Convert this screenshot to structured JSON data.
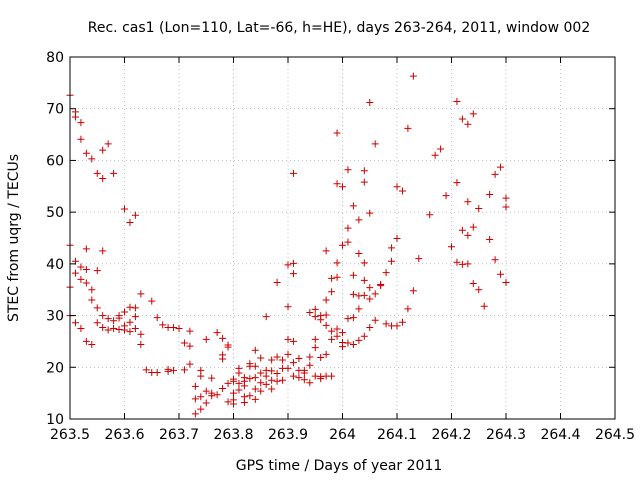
{
  "chart_data": {
    "type": "scatter",
    "title": "Rec. cas1 (Lon=110, Lat=-66, h=HE), days 263-264, 2011, window 002",
    "xlabel": "GPS time / Days of year 2011",
    "ylabel": "STEC from uqrg / TECUs",
    "xlim": [
      263.5,
      264.5
    ],
    "ylim": [
      10,
      80
    ],
    "xticks": [
      "263.5",
      "263.6",
      "263.7",
      "263.8",
      "263.9",
      "264",
      "264.1",
      "264.2",
      "264.3",
      "264.4",
      "264.5"
    ],
    "yticks": [
      "10",
      "20",
      "30",
      "40",
      "50",
      "60",
      "70",
      "80"
    ],
    "grid": true,
    "marker": "+",
    "color": "#cc0000",
    "points": [
      [
        263.5,
        72.6
      ],
      [
        263.5,
        43.6
      ],
      [
        263.5,
        35.5
      ],
      [
        263.5,
        30.0
      ],
      [
        263.51,
        69.4
      ],
      [
        263.51,
        68.4
      ],
      [
        263.51,
        40.5
      ],
      [
        263.51,
        38.2
      ],
      [
        263.51,
        28.6
      ],
      [
        263.52,
        67.3
      ],
      [
        263.52,
        64.1
      ],
      [
        263.52,
        39.4
      ],
      [
        263.52,
        37.0
      ],
      [
        263.52,
        27.5
      ],
      [
        263.53,
        61.4
      ],
      [
        263.53,
        42.9
      ],
      [
        263.53,
        38.9
      ],
      [
        263.53,
        36.3
      ],
      [
        263.53,
        25.0
      ],
      [
        263.54,
        60.3
      ],
      [
        263.54,
        35.0
      ],
      [
        263.54,
        33.0
      ],
      [
        263.54,
        24.4
      ],
      [
        263.55,
        57.5
      ],
      [
        263.55,
        31.5
      ],
      [
        263.55,
        38.7
      ],
      [
        263.55,
        28.6
      ],
      [
        263.56,
        62.0
      ],
      [
        263.56,
        56.5
      ],
      [
        263.56,
        42.5
      ],
      [
        263.56,
        30.0
      ],
      [
        263.56,
        27.7
      ],
      [
        263.57,
        63.2
      ],
      [
        263.57,
        29.4
      ],
      [
        263.57,
        27.2
      ],
      [
        263.58,
        57.5
      ],
      [
        263.58,
        29.0
      ],
      [
        263.58,
        27.5
      ],
      [
        263.59,
        30.0
      ],
      [
        263.59,
        29.5
      ],
      [
        263.59,
        27.3
      ],
      [
        263.6,
        50.6
      ],
      [
        263.6,
        30.7
      ],
      [
        263.6,
        27.2
      ],
      [
        263.61,
        48.0
      ],
      [
        263.61,
        31.6
      ],
      [
        263.61,
        28.7
      ],
      [
        263.61,
        26.9
      ],
      [
        263.62,
        49.4
      ],
      [
        263.62,
        31.5
      ],
      [
        263.62,
        29.8
      ],
      [
        263.63,
        34.2
      ],
      [
        263.63,
        26.4
      ],
      [
        263.63,
        24.4
      ],
      [
        263.64,
        19.5
      ],
      [
        263.65,
        32.8
      ],
      [
        263.65,
        19.0
      ],
      [
        263.66,
        29.6
      ],
      [
        263.66,
        19.0
      ],
      [
        263.67,
        28.2
      ],
      [
        263.68,
        19.6
      ],
      [
        263.68,
        27.7
      ],
      [
        263.69,
        19.4
      ],
      [
        263.69,
        27.7
      ],
      [
        263.7,
        27.5
      ],
      [
        263.71,
        19.5
      ],
      [
        263.71,
        24.7
      ],
      [
        263.72,
        27.0
      ],
      [
        263.72,
        20.6
      ],
      [
        263.72,
        24.1
      ],
      [
        263.73,
        16.3
      ],
      [
        263.73,
        13.9
      ],
      [
        263.73,
        11.0
      ],
      [
        263.74,
        19.4
      ],
      [
        263.74,
        18.3
      ],
      [
        263.74,
        11.9
      ],
      [
        263.75,
        15.4
      ],
      [
        263.75,
        13.1
      ],
      [
        263.75,
        25.4
      ],
      [
        263.76,
        14.5
      ],
      [
        263.76,
        15.0
      ],
      [
        263.77,
        26.7
      ],
      [
        263.77,
        14.7
      ],
      [
        263.78,
        22.4
      ],
      [
        263.78,
        25.6
      ],
      [
        263.78,
        21.6
      ],
      [
        263.79,
        24.3
      ],
      [
        263.79,
        23.9
      ],
      [
        263.79,
        13.3
      ],
      [
        263.8,
        17.7
      ],
      [
        263.8,
        17.3
      ],
      [
        263.8,
        15.0
      ],
      [
        263.8,
        13.7
      ],
      [
        263.81,
        19.8
      ],
      [
        263.81,
        18.9
      ],
      [
        263.81,
        16.9
      ],
      [
        263.81,
        15.6
      ],
      [
        263.82,
        18.0
      ],
      [
        263.82,
        17.3
      ],
      [
        263.82,
        16.4
      ],
      [
        263.82,
        14.3
      ],
      [
        263.82,
        13.2
      ],
      [
        263.83,
        20.7
      ],
      [
        263.83,
        17.8
      ],
      [
        263.83,
        14.5
      ],
      [
        263.84,
        23.3
      ],
      [
        263.84,
        20.2
      ],
      [
        263.84,
        18.0
      ],
      [
        263.84,
        15.8
      ],
      [
        263.84,
        13.8
      ],
      [
        263.85,
        18.9
      ],
      [
        263.85,
        17.0
      ],
      [
        263.85,
        15.4
      ],
      [
        263.86,
        29.8
      ],
      [
        263.86,
        19.4
      ],
      [
        263.86,
        18.3
      ],
      [
        263.86,
        16.7
      ],
      [
        263.87,
        19.3
      ],
      [
        263.87,
        17.5
      ],
      [
        263.87,
        15.8
      ],
      [
        263.88,
        36.4
      ],
      [
        263.88,
        22.0
      ],
      [
        263.88,
        18.8
      ],
      [
        263.88,
        17.3
      ],
      [
        263.89,
        21.4
      ],
      [
        263.89,
        19.8
      ],
      [
        263.89,
        17.5
      ],
      [
        263.9,
        39.8
      ],
      [
        263.9,
        31.7
      ],
      [
        263.9,
        25.4
      ],
      [
        263.9,
        22.5
      ],
      [
        263.9,
        19.8
      ],
      [
        263.91,
        57.5
      ],
      [
        263.91,
        40.1
      ],
      [
        263.91,
        38.1
      ],
      [
        263.91,
        25.0
      ],
      [
        263.91,
        20.9
      ],
      [
        263.91,
        18.3
      ],
      [
        263.92,
        19.4
      ],
      [
        263.92,
        18.0
      ],
      [
        263.93,
        19.4
      ],
      [
        263.93,
        18.9
      ],
      [
        263.94,
        30.6
      ],
      [
        263.94,
        22.0
      ],
      [
        263.94,
        20.4
      ],
      [
        263.94,
        17.0
      ],
      [
        263.95,
        31.2
      ],
      [
        263.95,
        29.8
      ],
      [
        263.95,
        25.4
      ],
      [
        263.95,
        23.8
      ],
      [
        263.95,
        18.3
      ],
      [
        263.96,
        30.0
      ],
      [
        263.96,
        29.2
      ],
      [
        263.96,
        21.9
      ],
      [
        263.96,
        17.8
      ],
      [
        263.97,
        42.5
      ],
      [
        263.97,
        33.0
      ],
      [
        263.97,
        28.1
      ],
      [
        263.97,
        22.5
      ],
      [
        263.97,
        18.3
      ],
      [
        263.98,
        37.2
      ],
      [
        263.98,
        34.6
      ],
      [
        263.98,
        27.0
      ],
      [
        263.98,
        25.4
      ],
      [
        263.98,
        18.3
      ],
      [
        263.99,
        65.3
      ],
      [
        263.99,
        55.5
      ],
      [
        263.99,
        40.2
      ],
      [
        263.99,
        37.4
      ],
      [
        263.99,
        27.4
      ],
      [
        263.99,
        26.0
      ],
      [
        264.0,
        54.9
      ],
      [
        264.0,
        43.6
      ],
      [
        264.0,
        26.7
      ],
      [
        264.0,
        24.8
      ],
      [
        264.0,
        24.0
      ],
      [
        264.01,
        58.2
      ],
      [
        264.01,
        46.9
      ],
      [
        264.01,
        44.2
      ],
      [
        264.01,
        29.4
      ],
      [
        264.01,
        24.7
      ],
      [
        264.02,
        51.2
      ],
      [
        264.02,
        37.8
      ],
      [
        264.02,
        34.1
      ],
      [
        264.02,
        29.6
      ],
      [
        264.02,
        24.4
      ],
      [
        264.03,
        48.5
      ],
      [
        264.03,
        42.0
      ],
      [
        264.03,
        33.8
      ],
      [
        264.03,
        31.3
      ],
      [
        264.03,
        25.2
      ],
      [
        264.04,
        58.0
      ],
      [
        264.04,
        55.8
      ],
      [
        264.04,
        40.2
      ],
      [
        264.04,
        36.8
      ],
      [
        264.04,
        33.9
      ],
      [
        264.04,
        26.0
      ],
      [
        264.05,
        71.2
      ],
      [
        264.05,
        49.8
      ],
      [
        264.05,
        35.4
      ],
      [
        264.05,
        33.2
      ],
      [
        264.05,
        27.7
      ],
      [
        264.06,
        63.2
      ],
      [
        264.06,
        34.2
      ],
      [
        264.06,
        29.1
      ],
      [
        264.07,
        36.0
      ],
      [
        264.07,
        35.8
      ],
      [
        264.08,
        38.3
      ],
      [
        264.08,
        28.4
      ],
      [
        264.09,
        43.1
      ],
      [
        264.09,
        40.5
      ],
      [
        264.09,
        28.0
      ],
      [
        264.1,
        54.9
      ],
      [
        264.1,
        44.9
      ],
      [
        264.1,
        28.0
      ],
      [
        264.11,
        54.1
      ],
      [
        264.11,
        28.7
      ],
      [
        264.12,
        66.2
      ],
      [
        264.12,
        31.3
      ],
      [
        264.13,
        76.3
      ],
      [
        264.13,
        34.8
      ],
      [
        264.14,
        41.0
      ],
      [
        264.16,
        49.5
      ],
      [
        264.17,
        61.0
      ],
      [
        264.18,
        62.2
      ],
      [
        264.19,
        53.2
      ],
      [
        264.2,
        43.3
      ],
      [
        264.21,
        55.7
      ],
      [
        264.21,
        71.4
      ],
      [
        264.21,
        40.3
      ],
      [
        264.22,
        68.0
      ],
      [
        264.22,
        46.5
      ],
      [
        264.22,
        39.9
      ],
      [
        264.23,
        67.0
      ],
      [
        264.23,
        52.0
      ],
      [
        264.23,
        45.5
      ],
      [
        264.23,
        40.0
      ],
      [
        264.24,
        69.0
      ],
      [
        264.24,
        36.2
      ],
      [
        264.24,
        47.1
      ],
      [
        264.25,
        50.7
      ],
      [
        264.25,
        35.0
      ],
      [
        264.26,
        31.8
      ],
      [
        264.27,
        53.4
      ],
      [
        264.27,
        44.7
      ],
      [
        264.28,
        57.3
      ],
      [
        264.28,
        40.8
      ],
      [
        264.29,
        58.7
      ],
      [
        264.29,
        38.0
      ],
      [
        264.3,
        52.7
      ],
      [
        264.3,
        51.0
      ],
      [
        264.3,
        36.4
      ],
      [
        263.6,
        28.0
      ],
      [
        263.62,
        27.5
      ],
      [
        263.68,
        19.2
      ],
      [
        263.74,
        14.3
      ],
      [
        263.76,
        17.9
      ],
      [
        263.78,
        15.9
      ],
      [
        263.79,
        16.9
      ],
      [
        263.8,
        12.9
      ],
      [
        263.83,
        20.2
      ],
      [
        263.85,
        21.8
      ],
      [
        263.87,
        21.4
      ],
      [
        263.92,
        21.7
      ],
      [
        263.93,
        17.6
      ],
      [
        263.96,
        18.2
      ],
      [
        263.97,
        30.1
      ]
    ]
  }
}
